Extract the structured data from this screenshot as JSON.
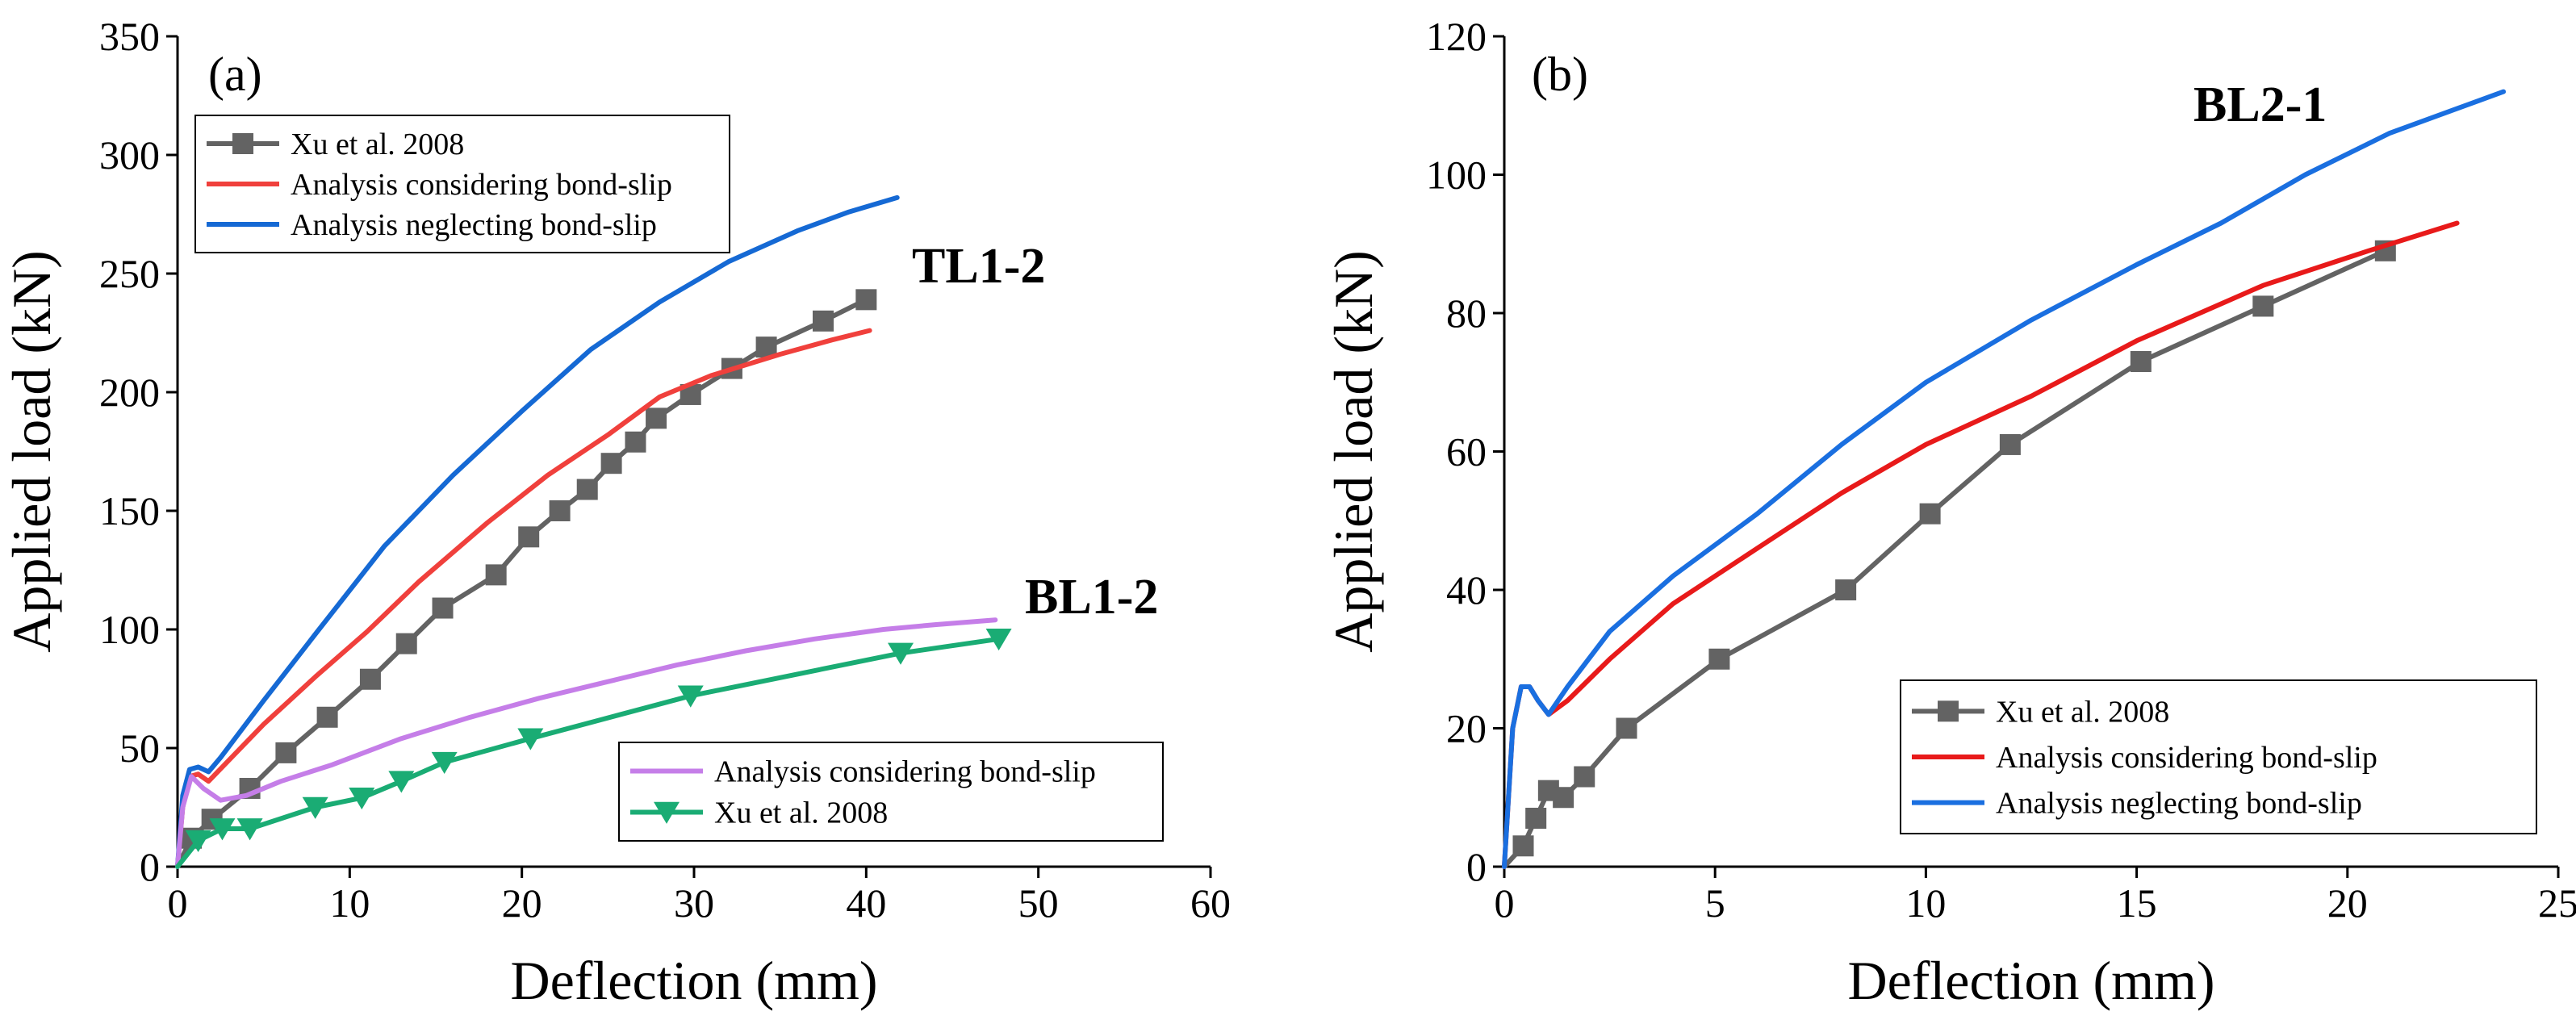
{
  "chart_data": [
    {
      "type": "line",
      "panel_label": "(a)",
      "xlabel": "Deflection (mm)",
      "ylabel": "Applied load (kN)",
      "xlim": [
        0,
        60
      ],
      "ylim": [
        0,
        350
      ],
      "xticks": [
        0,
        10,
        20,
        30,
        40,
        50,
        60
      ],
      "yticks": [
        0,
        50,
        100,
        150,
        200,
        250,
        300,
        350
      ],
      "annotations": [
        {
          "text": "TL1-2",
          "x": 47,
          "y": 250
        },
        {
          "text": "BL1-2",
          "x": 49,
          "y": 109
        }
      ],
      "legends": [
        {
          "entries": [
            "Xu et al. 2008",
            "Analysis considering bond-slip",
            "Analysis neglecting bond-slip"
          ],
          "position": "top-left",
          "series": [
            "tl_xu",
            "tl_bond",
            "tl_neglect"
          ]
        },
        {
          "entries": [
            "Analysis considering bond-slip",
            "Xu et al. 2008"
          ],
          "position": "bottom-right",
          "series": [
            "bl_bond",
            "bl_xu"
          ]
        }
      ],
      "series": [
        {
          "id": "tl_xu",
          "name": "Xu et al. 2008",
          "color": "#636363",
          "marker": "square",
          "x": [
            0,
            0.8,
            2.0,
            4.2,
            6.3,
            8.7,
            11.2,
            13.3,
            15.4,
            18.5,
            20.4,
            22.2,
            23.8,
            25.2,
            26.6,
            27.8,
            29.8,
            32.2,
            34.2,
            37.5,
            40.0
          ],
          "y": [
            0,
            12,
            20,
            33,
            48,
            63,
            79,
            94,
            109,
            123,
            139,
            150,
            159,
            170,
            179,
            189,
            199,
            210,
            219,
            230,
            239
          ]
        },
        {
          "id": "tl_bond",
          "name": "Analysis considering bond-slip",
          "color": "#f0403c",
          "marker": "none",
          "x": [
            0,
            0.3,
            0.7,
            1.2,
            1.8,
            3,
            5,
            8,
            11,
            14,
            18,
            21.5,
            25,
            28,
            31,
            35,
            38,
            40.2
          ],
          "y": [
            0,
            25,
            38,
            39,
            36,
            45,
            60,
            80,
            99,
            120,
            145,
            165,
            182,
            198,
            207,
            216,
            222,
            226
          ]
        },
        {
          "id": "tl_neglect",
          "name": "Analysis neglecting bond-slip",
          "color": "#1569d4",
          "marker": "none",
          "x": [
            0,
            0.3,
            0.7,
            1.2,
            1.8,
            2.5,
            5,
            8,
            12,
            16,
            20,
            24,
            28,
            32,
            36,
            39,
            41.8
          ],
          "y": [
            0,
            30,
            41,
            42,
            40,
            46,
            70,
            98,
            135,
            165,
            192,
            218,
            238,
            255,
            268,
            276,
            282
          ]
        },
        {
          "id": "bl_bond",
          "name": "Analysis considering bond-slip",
          "color": "#c57ee8",
          "marker": "none",
          "x": [
            0,
            0.3,
            0.8,
            1.5,
            2.5,
            4,
            6,
            9,
            13,
            17,
            21,
            25,
            29,
            33,
            37,
            41,
            44,
            47.5
          ],
          "y": [
            0,
            25,
            38,
            33,
            28,
            30,
            36,
            43,
            54,
            63,
            71,
            78,
            85,
            91,
            96,
            100,
            102,
            104
          ]
        },
        {
          "id": "bl_xu",
          "name": "Xu et al. 2008",
          "color": "#1aac74",
          "marker": "triangle-down",
          "x": [
            0,
            1.2,
            2.6,
            4.2,
            8.0,
            10.7,
            13.0,
            15.5,
            20.5,
            29.8,
            42.0,
            47.7
          ],
          "y": [
            0,
            11,
            16,
            16,
            25,
            29,
            36,
            44,
            54,
            72,
            90,
            96
          ]
        }
      ]
    },
    {
      "type": "line",
      "panel_label": "(b)",
      "xlabel": "Deflection (mm)",
      "ylabel": "Applied load (kN)",
      "xlim": [
        0,
        25
      ],
      "ylim": [
        0,
        120
      ],
      "xticks": [
        0,
        5,
        10,
        15,
        20,
        25
      ],
      "yticks": [
        0,
        20,
        40,
        60,
        80,
        100,
        120
      ],
      "annotations": [
        {
          "text": "BL2-1",
          "x": 20.5,
          "y": 110
        }
      ],
      "legends": [
        {
          "entries": [
            "Xu et al. 2008",
            "Analysis considering bond-slip",
            "Analysis neglecting bond-slip"
          ],
          "position": "bottom-right",
          "series": [
            "b_xu",
            "b_bond",
            "b_neglect"
          ]
        }
      ],
      "series": [
        {
          "id": "b_xu",
          "name": "Xu et al. 2008",
          "color": "#636363",
          "marker": "square",
          "x": [
            0,
            0.45,
            0.75,
            1.05,
            1.4,
            1.9,
            2.9,
            5.1,
            8.1,
            10.1,
            12.0,
            15.1,
            18.0,
            20.9
          ],
          "y": [
            0,
            3,
            7,
            11,
            10,
            13,
            20,
            30,
            40,
            51,
            61,
            73,
            81,
            89
          ]
        },
        {
          "id": "b_bond",
          "name": "Analysis considering bond-slip",
          "color": "#e81a1a",
          "marker": "none",
          "x": [
            0,
            0.2,
            0.4,
            0.6,
            0.8,
            1.05,
            1.5,
            2.5,
            4,
            6,
            8,
            10,
            12.5,
            15,
            18,
            20.5,
            22.6
          ],
          "y": [
            0,
            20,
            26,
            26,
            24,
            22,
            24,
            30,
            38,
            46,
            54,
            61,
            68,
            76,
            84,
            89,
            93
          ]
        },
        {
          "id": "b_neglect",
          "name": "Analysis neglecting bond-slip",
          "color": "#1a6fe0",
          "marker": "none",
          "x": [
            0,
            0.2,
            0.4,
            0.6,
            0.8,
            1.05,
            1.5,
            2.5,
            4,
            6,
            8,
            10,
            12.5,
            15,
            17,
            19,
            21,
            23.7
          ],
          "y": [
            0,
            20,
            26,
            26,
            24,
            22,
            26,
            34,
            42,
            51,
            61,
            70,
            79,
            87,
            93,
            100,
            106,
            112
          ]
        }
      ]
    }
  ]
}
